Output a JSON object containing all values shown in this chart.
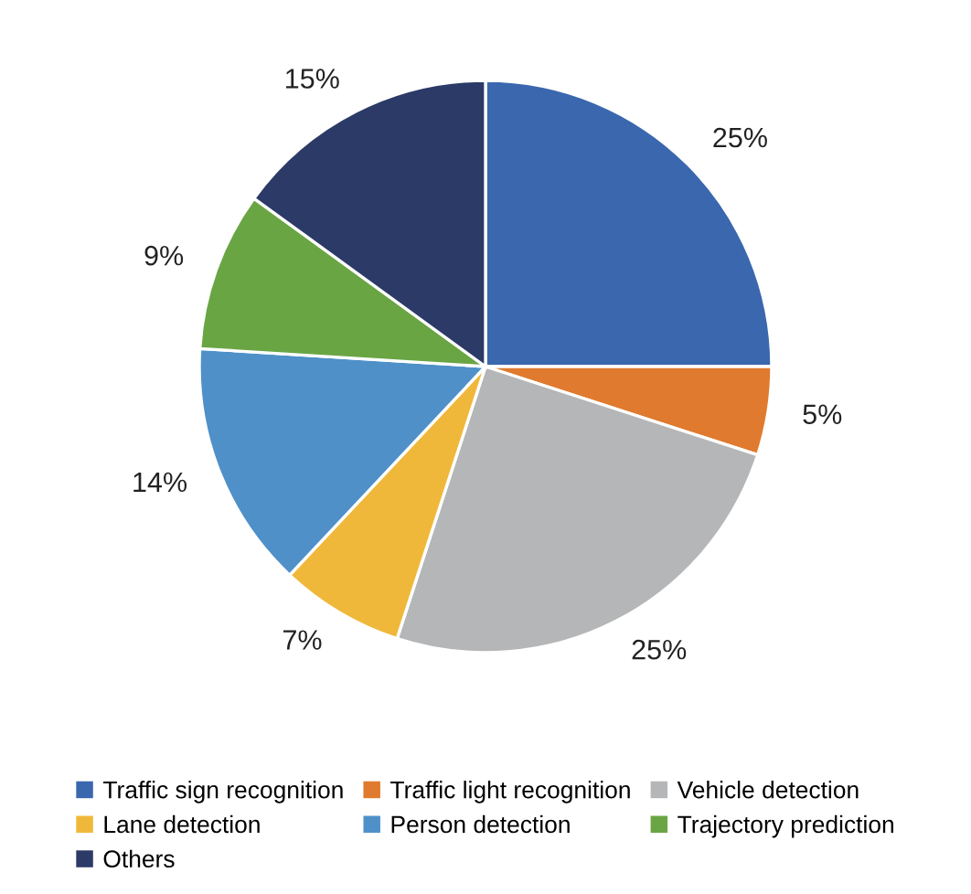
{
  "chart_data": {
    "type": "pie",
    "categories": [
      "Traffic sign recognition",
      "Traffic light recognition",
      "Vehicle detection",
      "Lane detection",
      "Person detection",
      "Trajectory prediction",
      "Others"
    ],
    "values": [
      25,
      5,
      25,
      7,
      14,
      9,
      15
    ],
    "colors": [
      "#3a67ae",
      "#e07a2e",
      "#b5b6b8",
      "#f0b83a",
      "#4f90c8",
      "#6aa544",
      "#2b3a66"
    ],
    "value_labels": [
      "25%",
      "5%",
      "25%",
      "7%",
      "14%",
      "9%",
      "15%"
    ],
    "legend": "bottom"
  }
}
